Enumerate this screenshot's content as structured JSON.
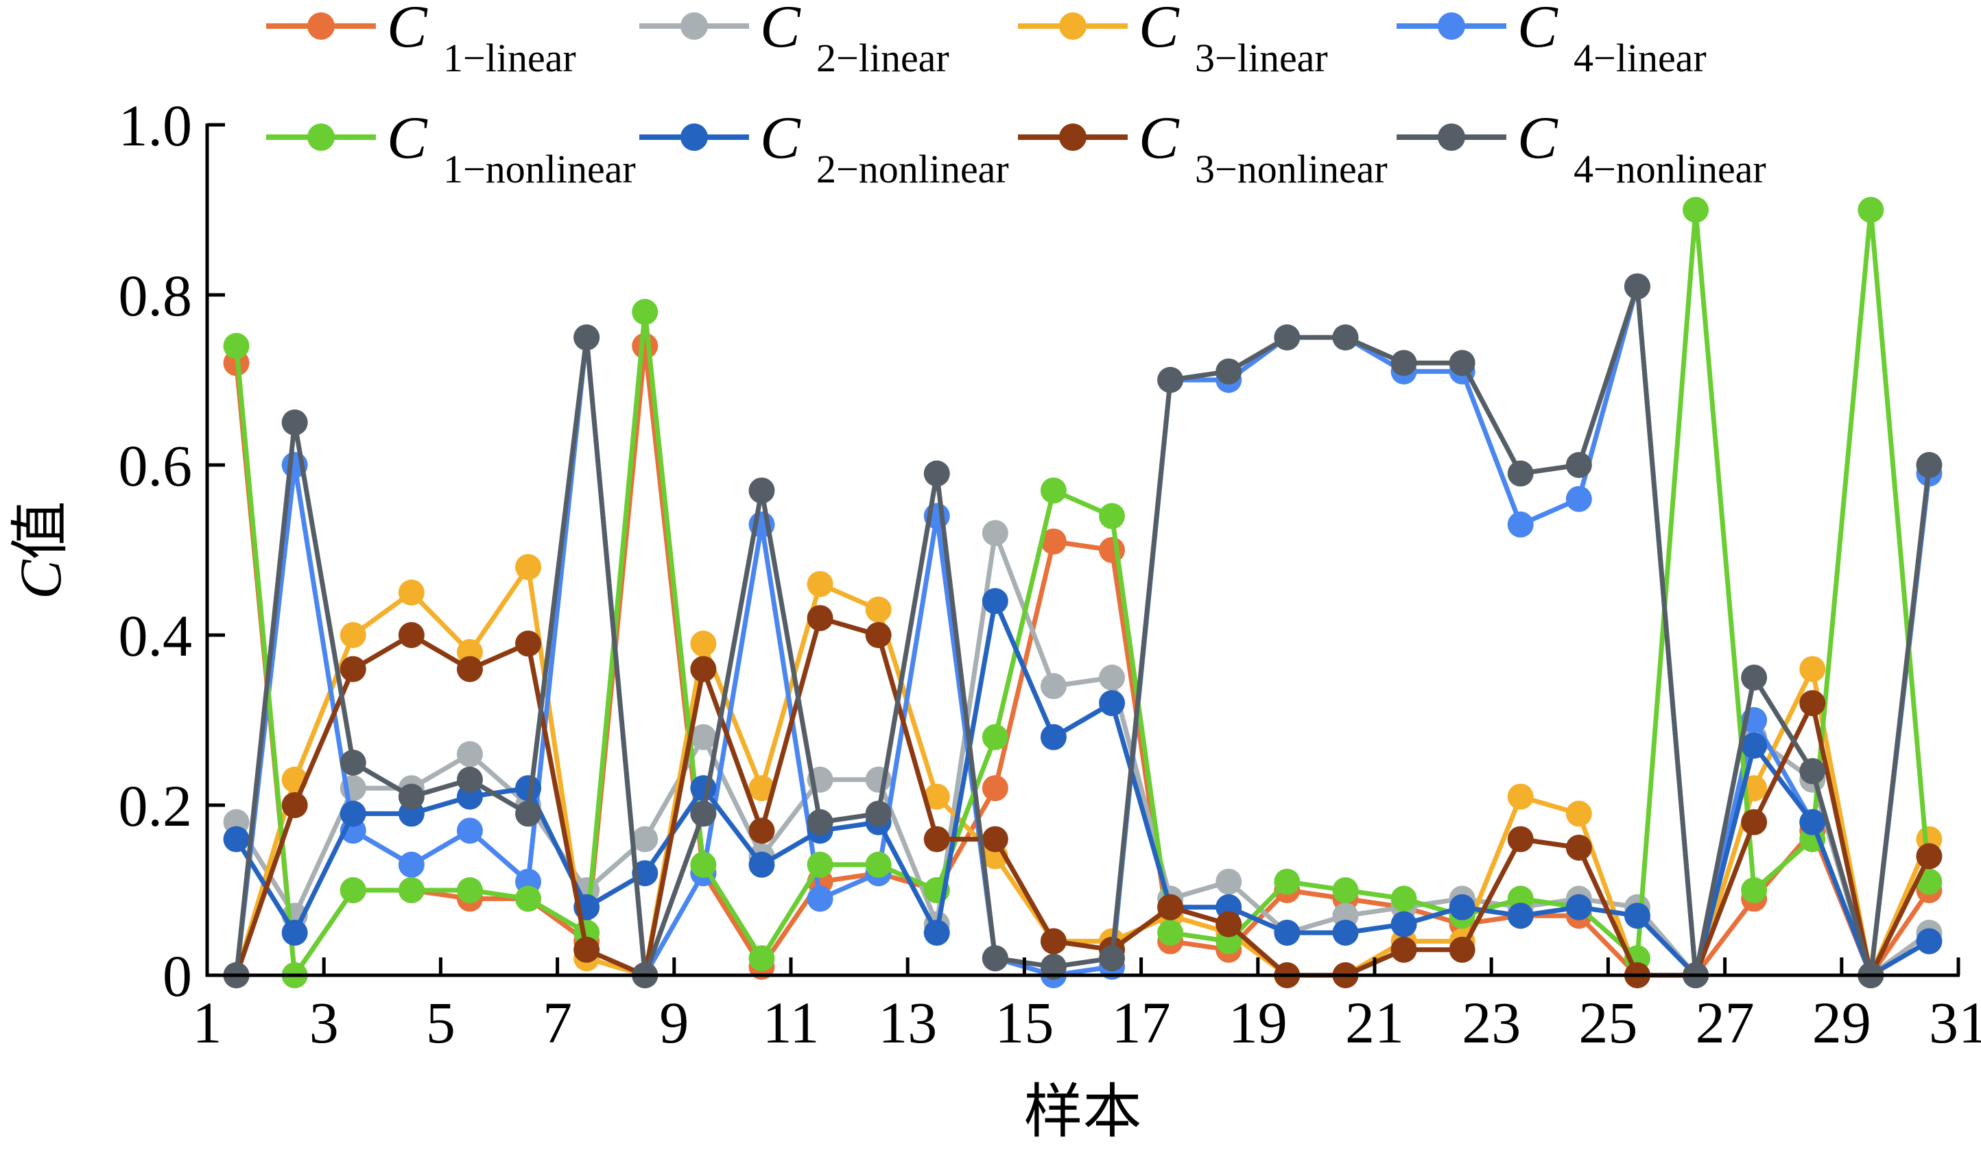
{
  "chart_data": {
    "type": "line",
    "xlabel": "样本",
    "ylabel_italic": "C",
    "ylabel_rest": "值",
    "xlim": [
      1,
      31
    ],
    "ylim": [
      0,
      1
    ],
    "x_ticks": [
      1,
      3,
      5,
      7,
      9,
      11,
      13,
      15,
      17,
      19,
      21,
      23,
      25,
      27,
      29,
      31
    ],
    "y_ticks": [
      {
        "value": 0,
        "label": "0"
      },
      {
        "value": 0.2,
        "label": "0.2"
      },
      {
        "value": 0.4,
        "label": "0.4"
      },
      {
        "value": 0.6,
        "label": "0.6"
      },
      {
        "value": 0.8,
        "label": "0.8"
      },
      {
        "value": 1.0,
        "label": "1.0"
      }
    ],
    "x": [
      1.5,
      2.5,
      3.5,
      4.5,
      5.5,
      6.5,
      7.5,
      8.5,
      9.5,
      10.5,
      11.5,
      12.5,
      13.5,
      14.5,
      15.5,
      16.5,
      17.5,
      18.5,
      19.5,
      20.5,
      21.5,
      22.5,
      23.5,
      24.5,
      25.5,
      26.5,
      27.5,
      28.5,
      29.5,
      30.5
    ],
    "legend_placement": "top",
    "series": [
      {
        "name_main": "C",
        "name_sub": "1−linear",
        "color": "#E8703A",
        "values": [
          0.72,
          0,
          0.1,
          0.1,
          0.09,
          0.09,
          0.04,
          0.74,
          0.12,
          0.01,
          0.11,
          0.12,
          0.1,
          0.22,
          0.51,
          0.5,
          0.04,
          0.03,
          0.1,
          0.09,
          0.08,
          0.06,
          0.07,
          0.07,
          0,
          0,
          0.09,
          0.17,
          0,
          0.1
        ]
      },
      {
        "name_main": "C",
        "name_sub": "2−linear",
        "color": "#A8B0B4",
        "values": [
          0.18,
          0.07,
          0.22,
          0.22,
          0.26,
          0.2,
          0.1,
          0.16,
          0.28,
          0.14,
          0.23,
          0.23,
          0.06,
          0.52,
          0.34,
          0.35,
          0.09,
          0.11,
          0.05,
          0.07,
          0.08,
          0.09,
          0.08,
          0.09,
          0.08,
          0,
          0.28,
          0.23,
          0,
          0.05
        ]
      },
      {
        "name_main": "C",
        "name_sub": "3−linear",
        "color": "#F5B02B",
        "values": [
          0,
          0.23,
          0.4,
          0.45,
          0.38,
          0.48,
          0.02,
          0,
          0.39,
          0.22,
          0.46,
          0.43,
          0.21,
          0.14,
          0.04,
          0.04,
          0.07,
          0.05,
          0,
          0,
          0.04,
          0.04,
          0.21,
          0.19,
          0,
          0,
          0.22,
          0.36,
          0,
          0.16
        ]
      },
      {
        "name_main": "C",
        "name_sub": "4−linear",
        "color": "#4A86F0",
        "values": [
          0,
          0.6,
          0.17,
          0.13,
          0.17,
          0.11,
          0.75,
          0,
          0.12,
          0.53,
          0.09,
          0.12,
          0.54,
          0.02,
          0,
          0.01,
          0.7,
          0.7,
          0.75,
          0.75,
          0.71,
          0.71,
          0.53,
          0.56,
          0.81,
          0,
          0.3,
          0.18,
          0,
          0.59
        ]
      },
      {
        "name_main": "C",
        "name_sub": "1−nonlinear",
        "color": "#6ACE33",
        "values": [
          0.74,
          0,
          0.1,
          0.1,
          0.1,
          0.09,
          0.05,
          0.78,
          0.13,
          0.02,
          0.13,
          0.13,
          0.1,
          0.28,
          0.57,
          0.54,
          0.05,
          0.04,
          0.11,
          0.1,
          0.09,
          0.07,
          0.09,
          0.08,
          0.02,
          0.9,
          0.1,
          0.16,
          0.9,
          0.11
        ]
      },
      {
        "name_main": "C",
        "name_sub": "2−nonlinear",
        "color": "#2563C0",
        "values": [
          0.16,
          0.05,
          0.19,
          0.19,
          0.21,
          0.22,
          0.08,
          0.12,
          0.22,
          0.13,
          0.17,
          0.18,
          0.05,
          0.44,
          0.28,
          0.32,
          0.08,
          0.08,
          0.05,
          0.05,
          0.06,
          0.08,
          0.07,
          0.08,
          0.07,
          0,
          0.27,
          0.18,
          0,
          0.04
        ]
      },
      {
        "name_main": "C",
        "name_sub": "3−nonlinear",
        "color": "#8B3A12",
        "values": [
          0,
          0.2,
          0.36,
          0.4,
          0.36,
          0.39,
          0.03,
          0,
          0.36,
          0.17,
          0.42,
          0.4,
          0.16,
          0.16,
          0.04,
          0.03,
          0.08,
          0.06,
          0,
          0,
          0.03,
          0.03,
          0.16,
          0.15,
          0,
          0,
          0.18,
          0.32,
          0,
          0.14
        ]
      },
      {
        "name_main": "C",
        "name_sub": "4−nonlinear",
        "color": "#555E66",
        "values": [
          0,
          0.65,
          0.25,
          0.21,
          0.23,
          0.19,
          0.75,
          0,
          0.19,
          0.57,
          0.18,
          0.19,
          0.59,
          0.02,
          0.01,
          0.02,
          0.7,
          0.71,
          0.75,
          0.75,
          0.72,
          0.72,
          0.59,
          0.6,
          0.81,
          0,
          0.35,
          0.24,
          0,
          0.6
        ]
      }
    ]
  }
}
